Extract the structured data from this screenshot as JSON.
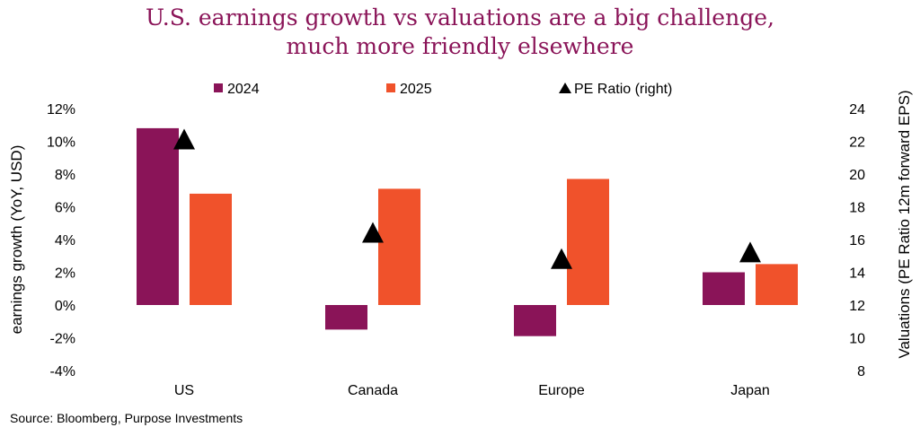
{
  "chart_data": {
    "type": "bar",
    "title_line1": "U.S. earnings growth vs valuations are a big challenge,",
    "title_line2": "much more friendly elsewhere",
    "categories": [
      "US",
      "Canada",
      "Europe",
      "Japan"
    ],
    "series": [
      {
        "name": "2024",
        "values": [
          10.8,
          -1.5,
          -1.9,
          2.0
        ],
        "color": "#8a1458",
        "axis": "left"
      },
      {
        "name": "2025",
        "values": [
          6.8,
          7.1,
          7.7,
          2.5
        ],
        "color": "#f0522b",
        "axis": "left"
      },
      {
        "name": "PE Ratio (right)",
        "values": [
          22.0,
          16.3,
          14.7,
          15.1
        ],
        "color": "#000000",
        "axis": "right",
        "marker": "triangle"
      }
    ],
    "ylabel": "earnings growth (YoY, USD)",
    "y2label": "Valuations (PE Ratio 12m forward EPS)",
    "ylim": [
      -4,
      12
    ],
    "yticks": [
      "-4%",
      "-2%",
      "0%",
      "2%",
      "4%",
      "6%",
      "8%",
      "10%",
      "12%"
    ],
    "y2lim": [
      8,
      24
    ],
    "y2ticks": [
      "8",
      "10",
      "12",
      "14",
      "16",
      "18",
      "20",
      "22",
      "24"
    ],
    "legend_position": "top"
  },
  "source": "Source: Bloomberg, Purpose Investments"
}
